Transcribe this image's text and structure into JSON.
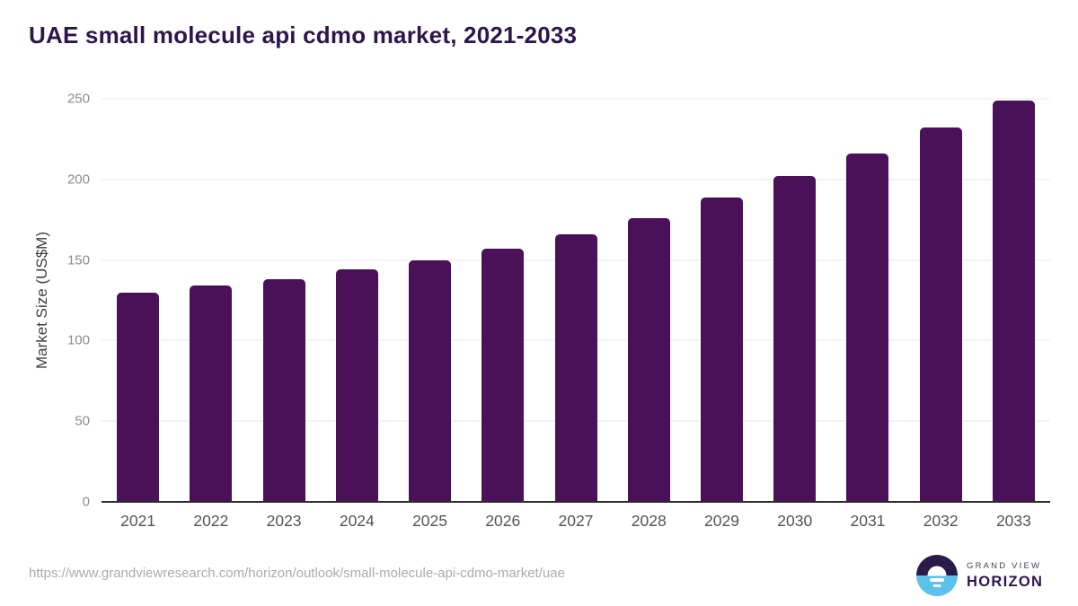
{
  "header": {
    "title": "UAE small molecule api cdmo market, 2021-2033"
  },
  "chart_data": {
    "type": "bar",
    "title": "UAE small molecule api cdmo market, 2021-2033",
    "xlabel": "",
    "ylabel": "Market Size (US$M)",
    "ylim": [
      0,
      250
    ],
    "yticks": [
      0,
      50,
      100,
      150,
      200,
      250
    ],
    "grid": true,
    "legend": "none",
    "bar_color": "#4a1159",
    "categories": [
      "2021",
      "2022",
      "2023",
      "2024",
      "2025",
      "2026",
      "2027",
      "2028",
      "2029",
      "2030",
      "2031",
      "2032",
      "2033"
    ],
    "values": [
      130,
      134,
      138,
      144,
      150,
      157,
      166,
      176,
      189,
      202,
      216,
      232,
      249
    ]
  },
  "footer": {
    "source_url": "https://www.grandviewresearch.com/horizon/outlook/small-molecule-api-cdmo-market/uae",
    "logo": {
      "icon": "horizon-sunrise-logo",
      "line1": "GRAND VIEW",
      "line2": "HORIZON"
    }
  },
  "colors": {
    "bar": "#4a1159",
    "title_text": "#2c164c",
    "logo_dark": "#2b1b4a",
    "logo_blue": "#5cc1ec",
    "gridline": "#e8e8e8",
    "axis_line": "#2b2b2b"
  }
}
